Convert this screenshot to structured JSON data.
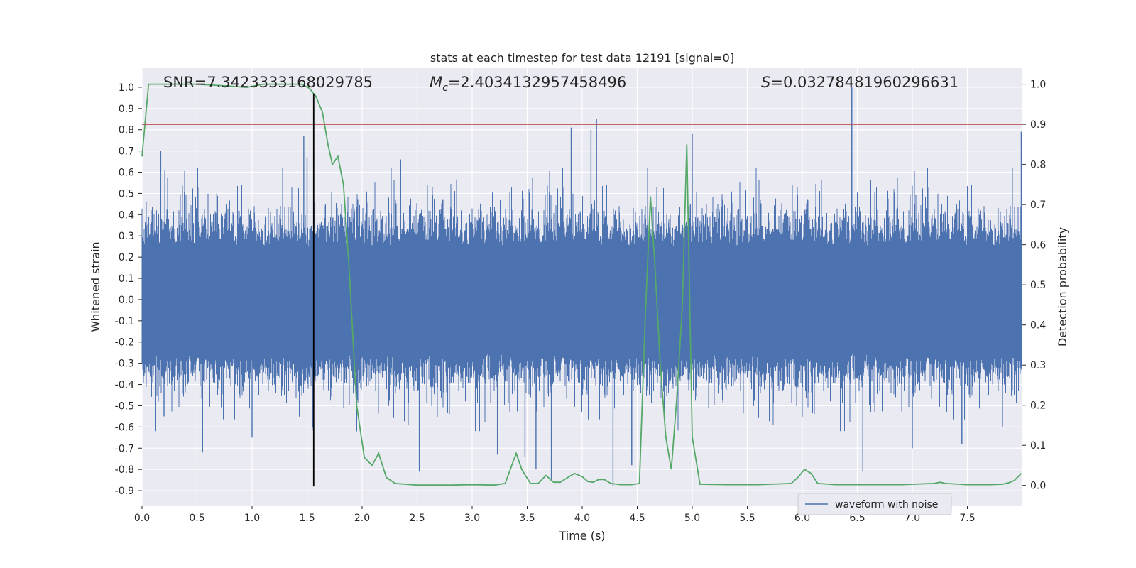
{
  "chart_data": {
    "type": "line",
    "title": "stats at each timestep for test data 12191 [signal=0]",
    "xlabel": "Time (s)",
    "ylabel": "Whitened strain",
    "y2label": "Detection probability",
    "xlim": [
      0,
      8
    ],
    "ylim": [
      -0.97,
      1.09
    ],
    "y2lim": [
      -0.05,
      1.04
    ],
    "xticks": [
      0.0,
      0.5,
      1.0,
      1.5,
      2.0,
      2.5,
      3.0,
      3.5,
      4.0,
      4.5,
      5.0,
      5.5,
      6.0,
      6.5,
      7.0,
      7.5
    ],
    "xtick_labels": [
      "0.0",
      "0.5",
      "1.0",
      "1.5",
      "2.0",
      "2.5",
      "3.0",
      "3.5",
      "4.0",
      "4.5",
      "5.0",
      "5.5",
      "6.0",
      "6.5",
      "7.0",
      "7.5"
    ],
    "yticks": [
      1.0,
      0.9,
      0.8,
      0.7,
      0.6,
      0.5,
      0.4,
      0.3,
      0.2,
      0.1,
      0.0,
      -0.1,
      -0.2,
      -0.3,
      -0.4,
      -0.5,
      -0.6,
      -0.7,
      -0.8,
      -0.9
    ],
    "ytick_labels": [
      "1.0",
      "0.9",
      "0.8",
      "0.7",
      "0.6",
      "0.5",
      "0.4",
      "0.3",
      "0.2",
      "0.1",
      "0.0",
      "-0.1",
      "-0.2",
      "-0.3",
      "-0.4",
      "-0.5",
      "-0.6",
      "-0.7",
      "-0.8",
      "-0.9"
    ],
    "y2ticks": [
      1.0,
      0.9,
      0.8,
      0.7,
      0.6,
      0.5,
      0.4,
      0.3,
      0.2,
      0.1,
      0.0
    ],
    "y2tick_labels": [
      "1.0",
      "0.9",
      "0.8",
      "0.7",
      "0.6",
      "0.5",
      "0.4",
      "0.3",
      "0.2",
      "0.1",
      "0.0"
    ],
    "annotations": {
      "snr": "SNR=7.3423333168029785",
      "mc_symbol": "M",
      "mc_sub": "c",
      "mc_value": "=2.4034132957458496",
      "s_symbol": "S",
      "s_value": "=0.03278481960296631"
    },
    "threshold_line": {
      "y2": 0.9,
      "color": "#c44e52"
    },
    "vertical_marker": {
      "x": 1.56,
      "y_range": [
        -0.88,
        0.97
      ],
      "color": "#000000"
    },
    "legend": {
      "label": "waveform with noise",
      "location": "lower right"
    },
    "series": [
      {
        "name": "waveform with noise",
        "axis": "left",
        "color": "#4c72b0",
        "kind": "noise",
        "sample_rate_hz": 2048,
        "core_amplitude": 0.25,
        "spikes": [
          {
            "x": 0.17,
            "y": 0.7
          },
          {
            "x": 0.2,
            "y": -0.55
          },
          {
            "x": 0.55,
            "y": -0.72
          },
          {
            "x": 0.68,
            "y": 0.5
          },
          {
            "x": 1.0,
            "y": -0.65
          },
          {
            "x": 1.47,
            "y": 0.77
          },
          {
            "x": 1.5,
            "y": 0.67
          },
          {
            "x": 1.55,
            "y": -0.6
          },
          {
            "x": 1.57,
            "y": 0.46
          },
          {
            "x": 1.95,
            "y": -0.62
          },
          {
            "x": 2.35,
            "y": 0.66
          },
          {
            "x": 2.52,
            "y": -0.81
          },
          {
            "x": 3.23,
            "y": -0.73
          },
          {
            "x": 3.48,
            "y": -0.74
          },
          {
            "x": 3.58,
            "y": -0.8
          },
          {
            "x": 3.72,
            "y": -0.85
          },
          {
            "x": 3.9,
            "y": 0.81
          },
          {
            "x": 4.08,
            "y": 0.8
          },
          {
            "x": 4.13,
            "y": 0.85
          },
          {
            "x": 4.28,
            "y": -0.88
          },
          {
            "x": 4.45,
            "y": -0.78
          },
          {
            "x": 5.0,
            "y": 0.78
          },
          {
            "x": 6.45,
            "y": 1.0
          },
          {
            "x": 6.55,
            "y": -0.81
          },
          {
            "x": 7.0,
            "y": -0.7
          },
          {
            "x": 7.45,
            "y": -0.68
          },
          {
            "x": 7.82,
            "y": -0.6
          },
          {
            "x": 7.99,
            "y": 0.79
          }
        ]
      },
      {
        "name": "detection probability",
        "axis": "right",
        "color": "#55a868",
        "x": [
          0.0,
          0.06,
          0.12,
          0.3,
          0.5,
          0.8,
          0.95,
          1.1,
          1.3,
          1.45,
          1.52,
          1.58,
          1.64,
          1.69,
          1.73,
          1.78,
          1.83,
          1.88,
          1.95,
          2.02,
          2.09,
          2.15,
          2.22,
          2.3,
          2.5,
          2.8,
          3.0,
          3.2,
          3.3,
          3.4,
          3.45,
          3.53,
          3.6,
          3.67,
          3.74,
          3.8,
          3.87,
          3.93,
          4.0,
          4.05,
          4.1,
          4.15,
          4.2,
          4.26,
          4.35,
          4.45,
          4.52,
          4.57,
          4.62,
          4.66,
          4.71,
          4.76,
          4.81,
          4.86,
          4.91,
          4.95,
          5.0,
          5.07,
          5.3,
          5.6,
          5.9,
          5.96,
          6.02,
          6.08,
          6.14,
          6.3,
          6.6,
          6.9,
          7.2,
          7.25,
          7.3,
          7.5,
          7.7,
          7.82,
          7.88,
          7.93,
          7.99
        ],
        "y": [
          0.82,
          1.0,
          1.0,
          1.0,
          1.0,
          0.995,
          0.992,
          1.0,
          1.0,
          1.0,
          0.99,
          0.97,
          0.93,
          0.85,
          0.8,
          0.82,
          0.75,
          0.55,
          0.2,
          0.07,
          0.05,
          0.08,
          0.02,
          0.005,
          0.001,
          0.001,
          0.002,
          0.001,
          0.005,
          0.08,
          0.04,
          0.005,
          0.005,
          0.025,
          0.008,
          0.008,
          0.02,
          0.03,
          0.022,
          0.01,
          0.008,
          0.015,
          0.015,
          0.005,
          0.002,
          0.002,
          0.005,
          0.4,
          0.72,
          0.55,
          0.3,
          0.12,
          0.04,
          0.22,
          0.45,
          0.85,
          0.12,
          0.003,
          0.002,
          0.002,
          0.005,
          0.02,
          0.04,
          0.03,
          0.005,
          0.002,
          0.002,
          0.002,
          0.005,
          0.008,
          0.005,
          0.002,
          0.002,
          0.003,
          0.007,
          0.013,
          0.03
        ]
      }
    ]
  }
}
